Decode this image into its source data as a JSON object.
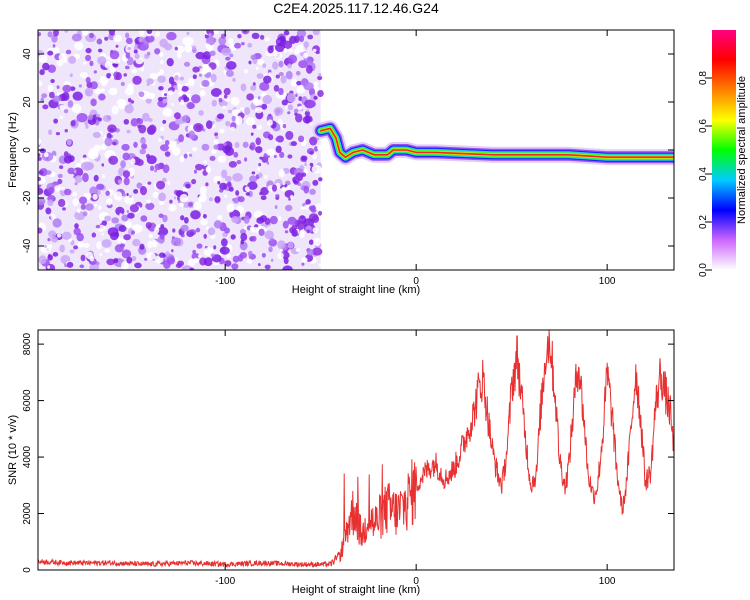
{
  "title": "C2E4.2025.117.12.46.G24",
  "chart_data": [
    {
      "type": "heatmap",
      "xlabel": "Height of straight line (km)",
      "ylabel": "Frequency (Hz)",
      "xlim": [
        -198,
        135
      ],
      "ylim": [
        -50,
        50
      ],
      "x_ticks": [
        -100,
        0,
        100
      ],
      "x_tick_labels": [
        "-100",
        "0",
        "100"
      ],
      "y_ticks": [
        -40,
        -20,
        0,
        20,
        40
      ],
      "y_tick_labels": [
        "-40",
        "-20",
        "0",
        "20",
        "40"
      ],
      "noise_region_x": [
        -198,
        -50
      ],
      "signal_track": [
        {
          "x": -50,
          "y": 8
        },
        {
          "x": -45,
          "y": 9
        },
        {
          "x": -42,
          "y": 5
        },
        {
          "x": -40,
          "y": -1
        },
        {
          "x": -37,
          "y": -3
        },
        {
          "x": -33,
          "y": -1
        },
        {
          "x": -28,
          "y": 0
        },
        {
          "x": -22,
          "y": -2
        },
        {
          "x": -15,
          "y": -2
        },
        {
          "x": -12,
          "y": 0
        },
        {
          "x": -5,
          "y": 0
        },
        {
          "x": 0,
          "y": -1
        },
        {
          "x": 10,
          "y": -1
        },
        {
          "x": 40,
          "y": -2
        },
        {
          "x": 80,
          "y": -2
        },
        {
          "x": 100,
          "y": -3
        },
        {
          "x": 120,
          "y": -3
        },
        {
          "x": 135,
          "y": -3
        }
      ],
      "colorbar": {
        "label": "Normalized spectral amplitude",
        "range": [
          0,
          1
        ],
        "ticks": [
          0.0,
          0.2,
          0.4,
          0.6,
          0.8
        ],
        "tick_labels": [
          "0.0",
          "0.2",
          "0.4",
          "0.6",
          "0.8"
        ],
        "colors": [
          "#ffffff",
          "#cc66ff",
          "#0000ff",
          "#00ccff",
          "#00ff00",
          "#ffff00",
          "#ff8000",
          "#ff0000",
          "#ff0080"
        ]
      }
    },
    {
      "type": "line",
      "xlabel": "Height of straight line (km)",
      "ylabel": "SNR (10 * v/v)",
      "xlim": [
        -198,
        135
      ],
      "ylim": [
        0,
        8500
      ],
      "x_ticks": [
        -100,
        0,
        100
      ],
      "x_tick_labels": [
        "-100",
        "0",
        "100"
      ],
      "y_ticks": [
        0,
        2000,
        4000,
        6000,
        8000
      ],
      "y_tick_labels": [
        "0",
        "2000",
        "4000",
        "6000",
        "8000"
      ],
      "line_color": "#e83030",
      "series": [
        {
          "x": [
            -198,
            -180,
            -160,
            -140,
            -120,
            -100,
            -80,
            -60,
            -45,
            -40,
            -38,
            -35,
            -32,
            -30,
            -28,
            -25,
            -22,
            -20,
            -15,
            -10,
            -5,
            0,
            5,
            10,
            15,
            20,
            25,
            30,
            33,
            35,
            38,
            40,
            43,
            45,
            48,
            50,
            53,
            55,
            58,
            60,
            63,
            65,
            68,
            70,
            73,
            75,
            78,
            80,
            83,
            85,
            88,
            90,
            93,
            95,
            98,
            100,
            103,
            105,
            108,
            110,
            113,
            115,
            118,
            120,
            123,
            125,
            128,
            130,
            133,
            135
          ],
          "y": [
            300,
            250,
            250,
            200,
            250,
            200,
            250,
            200,
            200,
            500,
            900,
            1800,
            2200,
            1500,
            1200,
            2000,
            1600,
            1800,
            2200,
            2000,
            2400,
            3000,
            3500,
            3800,
            3200,
            3600,
            4500,
            5500,
            6500,
            6800,
            5200,
            4200,
            3300,
            3000,
            4500,
            6500,
            7600,
            6200,
            4200,
            3000,
            3400,
            5500,
            7800,
            8200,
            6000,
            4000,
            2900,
            3800,
            6200,
            7400,
            5200,
            3400,
            2600,
            3000,
            5000,
            7000,
            5200,
            3500,
            2100,
            3000,
            5400,
            7100,
            5000,
            3100,
            3500,
            5600,
            7000,
            6400,
            5600,
            4200
          ]
        }
      ]
    }
  ]
}
